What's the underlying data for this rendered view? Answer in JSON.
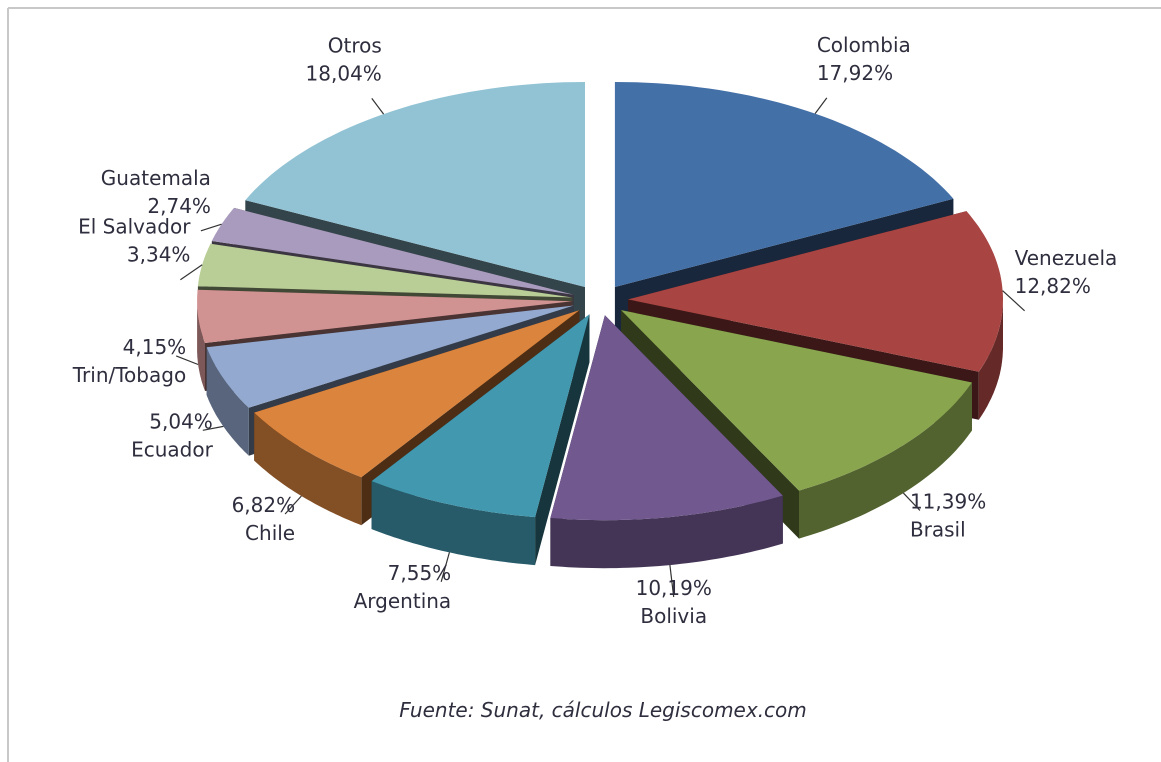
{
  "chart_data": {
    "type": "pie3d",
    "categories": [
      "Colombia",
      "Venezuela",
      "Brasil",
      "Bolivia",
      "Argentina",
      "Chile",
      "Ecuador",
      "Trin/Tobago",
      "El Salvador",
      "Guatemala",
      "Otros"
    ],
    "values": [
      17.92,
      12.82,
      11.39,
      10.19,
      7.55,
      6.82,
      5.04,
      4.15,
      3.34,
      2.74,
      18.04
    ],
    "value_labels": [
      "17,92%",
      "12,82%",
      "11,39%",
      "10,19%",
      "7,55%",
      "6,82%",
      "5,04%",
      "4,15%",
      "3,34%",
      "2,74%",
      "18,04%"
    ],
    "colors": [
      "#4470a8",
      "#a84442",
      "#89a54e",
      "#71588f",
      "#4198af",
      "#db843d",
      "#93a9cf",
      "#d19392",
      "#b9cd96",
      "#a99bbd",
      "#92c3d4"
    ],
    "annotation": "Fuente: Sunat, cálculos Legiscomex.com"
  }
}
